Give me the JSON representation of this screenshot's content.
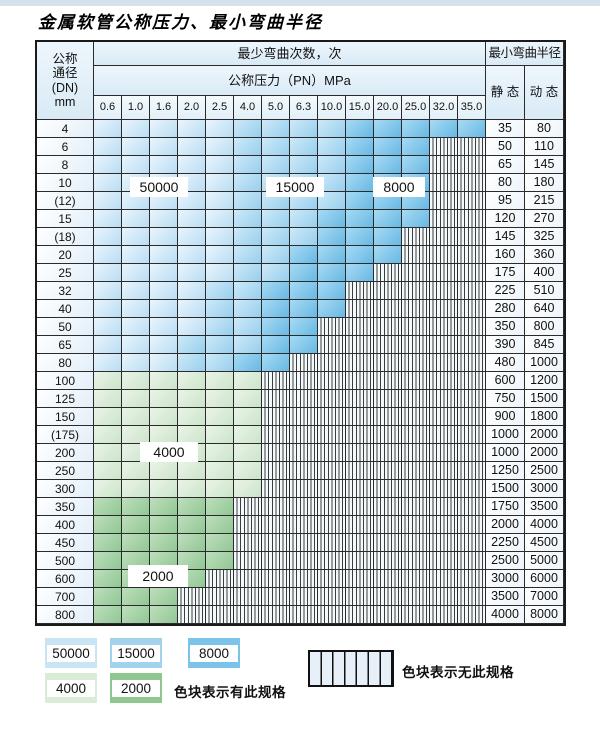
{
  "title": "金属软管公称压力、最小弯曲半径",
  "table": {
    "header": {
      "dn_label_lines": [
        "公称",
        "通径",
        "(DN)",
        "mm"
      ],
      "bend_times_label": "最少弯曲次数，次",
      "pressure_label": "公称压力（PN）MPa",
      "pressure_columns": [
        "0.6",
        "1.0",
        "1.6",
        "2.0",
        "2.5",
        "4.0",
        "5.0",
        "6.3",
        "10.0",
        "15.0",
        "20.0",
        "25.0",
        "32.0",
        "35.0"
      ],
      "radius_label": "最小弯曲半径",
      "static_label": "静 态",
      "dynamic_label": "动 态"
    },
    "cell_codes": {
      "L": "50000",
      "M": "15000",
      "D": "8000",
      "G": "4000",
      "g": "2000",
      "X": "no-spec"
    },
    "zone_labels": {
      "z50000": "50000",
      "z15000": "15000",
      "z8000": "8000",
      "z4000": "4000",
      "z2000": "2000"
    },
    "rows": [
      {
        "dn": "4",
        "cells": "LLLLLMMMMDDDDD",
        "static": "35",
        "dynamic": "80"
      },
      {
        "dn": "6",
        "cells": "LLLLLMMMMDDDXX",
        "static": "50",
        "dynamic": "110"
      },
      {
        "dn": "8",
        "cells": "LLLLLMMMMDDDXX",
        "static": "65",
        "dynamic": "145"
      },
      {
        "dn": "10",
        "cells": "LLLLLMMMMDDDXX",
        "static": "80",
        "dynamic": "180"
      },
      {
        "dn": "(12)",
        "cells": "LLLLLMMMMDDDXX",
        "static": "95",
        "dynamic": "215"
      },
      {
        "dn": "15",
        "cells": "LLLLLMMMDDDDXX",
        "static": "120",
        "dynamic": "270"
      },
      {
        "dn": "(18)",
        "cells": "LLLLLMMMDDDXXX",
        "static": "145",
        "dynamic": "325"
      },
      {
        "dn": "20",
        "cells": "LLLLLMMDDDDXXX",
        "static": "160",
        "dynamic": "360"
      },
      {
        "dn": "25",
        "cells": "LLLLLMMDDDXXXX",
        "static": "175",
        "dynamic": "400"
      },
      {
        "dn": "32",
        "cells": "LLLLMMDDDXXXXX",
        "static": "225",
        "dynamic": "510"
      },
      {
        "dn": "40",
        "cells": "LLLLMMDDDXXXXX",
        "static": "280",
        "dynamic": "640"
      },
      {
        "dn": "50",
        "cells": "LLLLMMDDXXXXXX",
        "static": "350",
        "dynamic": "800"
      },
      {
        "dn": "65",
        "cells": "LLLMMMDDXXXXXX",
        "static": "390",
        "dynamic": "845"
      },
      {
        "dn": "80",
        "cells": "LLLMMDDXXXXXXX",
        "static": "480",
        "dynamic": "1000"
      },
      {
        "dn": "100",
        "cells": "GGGGGGXXXXXXXX",
        "static": "600",
        "dynamic": "1200"
      },
      {
        "dn": "125",
        "cells": "GGGGGGXXXXXXXX",
        "static": "750",
        "dynamic": "1500"
      },
      {
        "dn": "150",
        "cells": "GGGGGGXXXXXXXX",
        "static": "900",
        "dynamic": "1800"
      },
      {
        "dn": "(175)",
        "cells": "GGGGGGXXXXXXXX",
        "static": "1000",
        "dynamic": "2000"
      },
      {
        "dn": "200",
        "cells": "GGGGGGXXXXXXXX",
        "static": "1000",
        "dynamic": "2000"
      },
      {
        "dn": "250",
        "cells": "GGGGGGXXXXXXXX",
        "static": "1250",
        "dynamic": "2500"
      },
      {
        "dn": "300",
        "cells": "GGGGGGXXXXXXXX",
        "static": "1500",
        "dynamic": "3000"
      },
      {
        "dn": "350",
        "cells": "gggggXXXXXXXXX",
        "static": "1750",
        "dynamic": "3500"
      },
      {
        "dn": "400",
        "cells": "gggggXXXXXXXXX",
        "static": "2000",
        "dynamic": "4000"
      },
      {
        "dn": "450",
        "cells": "gggggXXXXXXXXX",
        "static": "2250",
        "dynamic": "4500"
      },
      {
        "dn": "500",
        "cells": "gggggXXXXXXXXX",
        "static": "2500",
        "dynamic": "5000"
      },
      {
        "dn": "600",
        "cells": "ggggXXXXXXXXXX",
        "static": "3000",
        "dynamic": "6000"
      },
      {
        "dn": "700",
        "cells": "gggXXXXXXXXXXX",
        "static": "3500",
        "dynamic": "7000"
      },
      {
        "dn": "800",
        "cells": "gggXXXXXXXXXXX",
        "static": "4000",
        "dynamic": "8000"
      }
    ]
  },
  "legend": {
    "items": [
      {
        "value": "50000",
        "color": "#c8e4f5"
      },
      {
        "value": "15000",
        "color": "#a3d2ef"
      },
      {
        "value": "8000",
        "color": "#7cc3ea"
      },
      {
        "value": "4000",
        "color": "#d9ecd6"
      },
      {
        "value": "2000",
        "color": "#8ec890"
      }
    ],
    "has_spec_note": "色块表示有此规格",
    "no_spec_note": "色块表示无此规格"
  }
}
